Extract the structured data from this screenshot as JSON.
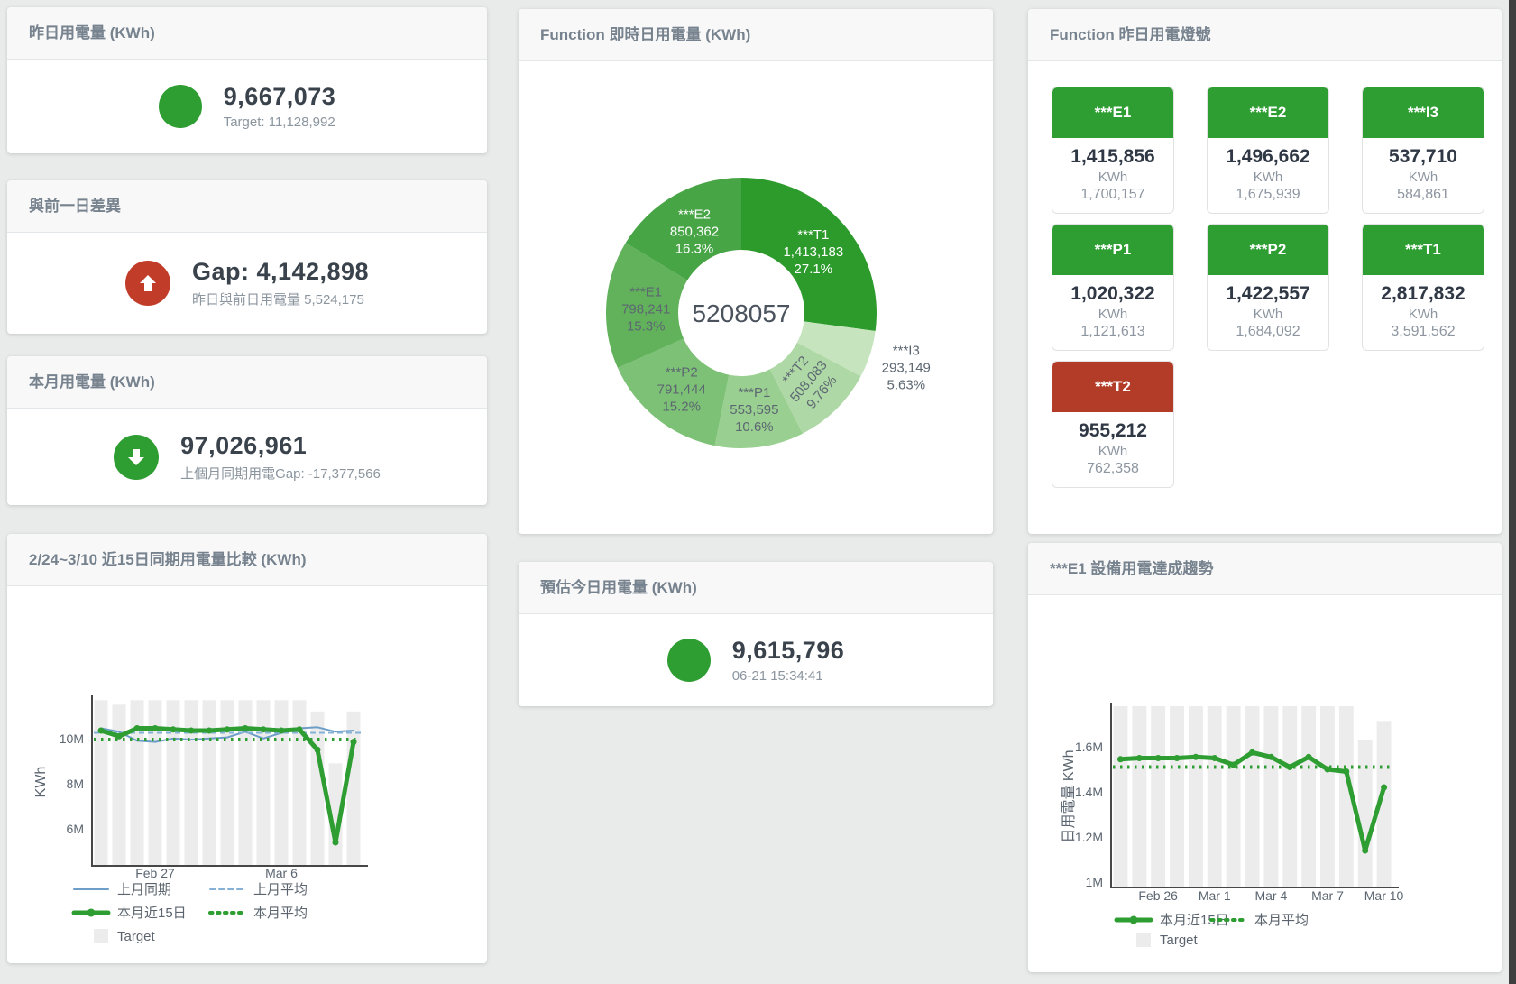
{
  "colors": {
    "green": "#2e9d32",
    "red_circle": "#c23d29",
    "red_tile": "#b23c28",
    "blue": "#6d9ec7",
    "blue_light": "#85b2d6",
    "gray_bar": "#ececec",
    "axis": "#474747",
    "tick_text": "#5b6570",
    "legend_text": "#5b646e",
    "label_dark": "#5d6772",
    "donut_center_text": "#4b545e",
    "white": "#ffffff"
  },
  "cards": {
    "yesterday": {
      "title": "昨日用電量 (KWh)",
      "value": "9,667,073",
      "sub": "Target: 11,128,992"
    },
    "gap_prev_day": {
      "title": "與前一日差異",
      "value": "Gap: 4,142,898",
      "sub": "昨日與前日用電量 5,524,175"
    },
    "month": {
      "title": "本月用電量 (KWh)",
      "value": "97,026,961",
      "sub": "上個月同期用電Gap: -17,377,566"
    },
    "estimate_today": {
      "title": "預估今日用電量 (KWh)",
      "value": "9,615,796",
      "sub": "06-21 15:34:41"
    },
    "donut_card": {
      "title": "Function 即時日用電量 (KWh)"
    },
    "lights": {
      "title": "Function 昨日用電燈號"
    },
    "compare15": {
      "title": "2/24~3/10 近15日同期用電量比較 (KWh)"
    },
    "e1_trend": {
      "title": "***E1 設備用電達成趨勢"
    }
  },
  "lights_tiles": [
    {
      "name": "***E1",
      "value": "1,415,856",
      "unit": "KWh",
      "target": "1,700,157",
      "status": "green"
    },
    {
      "name": "***E2",
      "value": "1,496,662",
      "unit": "KWh",
      "target": "1,675,939",
      "status": "green"
    },
    {
      "name": "***I3",
      "value": "537,710",
      "unit": "KWh",
      "target": "584,861",
      "status": "green"
    },
    {
      "name": "***P1",
      "value": "1,020,322",
      "unit": "KWh",
      "target": "1,121,613",
      "status": "green"
    },
    {
      "name": "***P2",
      "value": "1,422,557",
      "unit": "KWh",
      "target": "1,684,092",
      "status": "green"
    },
    {
      "name": "***T1",
      "value": "2,817,832",
      "unit": "KWh",
      "target": "3,591,562",
      "status": "green"
    },
    {
      "name": "***T2",
      "value": "955,212",
      "unit": "KWh",
      "target": "762,358",
      "status": "red"
    }
  ],
  "chart_data": [
    {
      "id": "donut",
      "type": "pie",
      "title": "Function 即時日用電量 (KWh)",
      "center_label": "5208057",
      "slices": [
        {
          "name": "***T1",
          "value": 1413183,
          "value_label": "1,413,183",
          "pct_label": "27.1%",
          "color": "#2c9b2c",
          "text_color": "#ffffff",
          "label_mode": "inside"
        },
        {
          "name": "***I3",
          "value": 293149,
          "value_label": "293,149",
          "pct_label": "5.63%",
          "color": "#c6e4bd",
          "text_color": "#5d6772",
          "label_mode": "outside"
        },
        {
          "name": "***T2",
          "value": 508083,
          "value_label": "508,083",
          "pct_label": "9.76%",
          "color": "#aed8a5",
          "text_color": "#5d6772",
          "label_mode": "rotated"
        },
        {
          "name": "***P1",
          "value": 553595,
          "value_label": "553,595",
          "pct_label": "10.6%",
          "color": "#99cf90",
          "text_color": "#5d6772",
          "label_mode": "inside"
        },
        {
          "name": "***P2",
          "value": 791444,
          "value_label": "791,444",
          "pct_label": "15.2%",
          "color": "#7cc175",
          "text_color": "#5d6772",
          "label_mode": "inside"
        },
        {
          "name": "***E1",
          "value": 798241,
          "value_label": "798,241",
          "pct_label": "15.3%",
          "color": "#61b25b",
          "text_color": "#5d6772",
          "label_mode": "inside"
        },
        {
          "name": "***E2",
          "value": 850362,
          "value_label": "850,362",
          "pct_label": "16.3%",
          "color": "#47a546",
          "text_color": "#ffffff",
          "label_mode": "inside"
        }
      ]
    },
    {
      "id": "compare15",
      "type": "line",
      "title": "2/24~3/10 近15日同期用電量比較 (KWh)",
      "ylabel": "KWh",
      "ylim": [
        4.4,
        11.75
      ],
      "yticks": [
        {
          "v": 6,
          "label": "6M"
        },
        {
          "v": 8,
          "label": "8M"
        },
        {
          "v": 10,
          "label": "10M"
        }
      ],
      "xticks": [
        {
          "i": 3,
          "label": "Feb 27"
        },
        {
          "i": 10,
          "label": "Mar 6"
        }
      ],
      "target": {
        "name": "Target",
        "values": [
          11.7,
          11.5,
          11.7,
          11.7,
          11.7,
          11.7,
          11.7,
          11.7,
          11.7,
          11.7,
          11.7,
          11.7,
          11.2,
          8.9,
          11.2
        ]
      },
      "series": [
        {
          "name": "上月同期",
          "style": "blue-solid",
          "values": [
            10.45,
            10.3,
            9.9,
            9.85,
            10.0,
            9.95,
            10.0,
            10.05,
            10.3,
            10.0,
            10.25,
            10.45,
            10.5,
            10.3,
            10.35
          ]
        },
        {
          "name": "上月平均",
          "style": "blue-dashed",
          "constant": 10.25
        },
        {
          "name": "本月近15日",
          "style": "green-thick",
          "values": [
            10.35,
            10.1,
            10.45,
            10.45,
            10.4,
            10.35,
            10.35,
            10.4,
            10.45,
            10.4,
            10.35,
            10.4,
            9.5,
            5.4,
            9.85
          ]
        },
        {
          "name": "本月平均",
          "style": "green-dotted",
          "constant": 9.95
        }
      ],
      "legend_rows": [
        [
          "上月同期",
          "上月平均"
        ],
        [
          "本月近15日",
          "本月平均"
        ],
        [
          "Target"
        ]
      ]
    },
    {
      "id": "e1trend",
      "type": "line",
      "title": "***E1 設備用電達成趨勢",
      "ylabel": "日用電量 KWh",
      "ylim": [
        0.98,
        1.78
      ],
      "yticks": [
        {
          "v": 1,
          "label": "1M"
        },
        {
          "v": 1.2,
          "label": "1.2M"
        },
        {
          "v": 1.4,
          "label": "1.4M"
        },
        {
          "v": 1.6,
          "label": "1.6M"
        }
      ],
      "xticks": [
        {
          "i": 2,
          "label": "Feb 26"
        },
        {
          "i": 5,
          "label": "Mar 1"
        },
        {
          "i": 8,
          "label": "Mar 4"
        },
        {
          "i": 11,
          "label": "Mar 7"
        },
        {
          "i": 14,
          "label": "Mar 10"
        }
      ],
      "target": {
        "name": "Target",
        "values": [
          1.78,
          1.78,
          1.78,
          1.78,
          1.78,
          1.78,
          1.78,
          1.78,
          1.78,
          1.78,
          1.78,
          1.78,
          1.78,
          1.63,
          1.715
        ]
      },
      "series": [
        {
          "name": "本月近15日",
          "style": "green-thick",
          "values": [
            1.545,
            1.55,
            1.55,
            1.55,
            1.555,
            1.55,
            1.52,
            1.575,
            1.555,
            1.51,
            1.555,
            1.5,
            1.49,
            1.14,
            1.42
          ]
        },
        {
          "name": "本月平均",
          "style": "green-dotted",
          "constant": 1.51
        }
      ],
      "legend_rows": [
        [
          "本月近15日",
          "本月平均"
        ],
        [
          "Target"
        ]
      ]
    }
  ]
}
